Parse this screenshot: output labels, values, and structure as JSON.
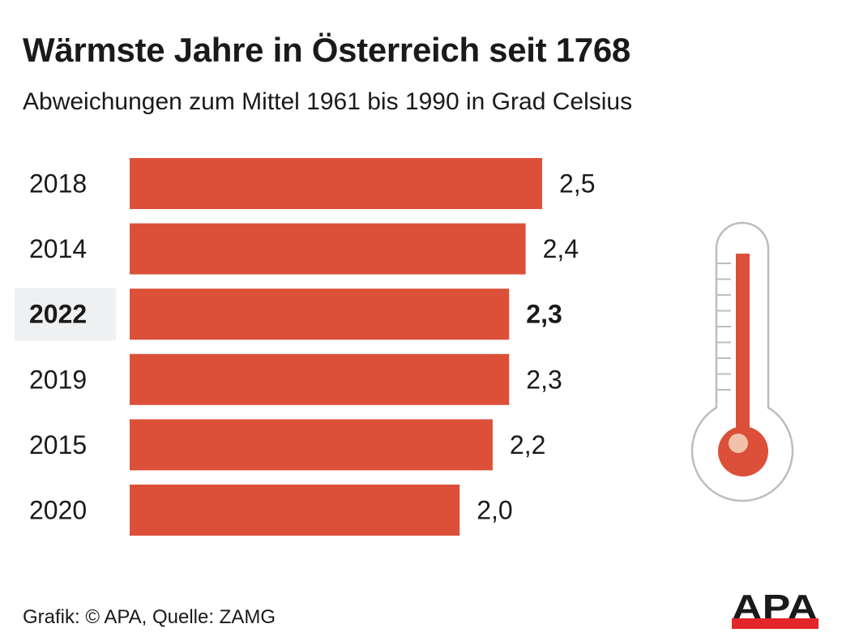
{
  "chart_data": {
    "type": "bar",
    "orientation": "horizontal",
    "title": "Wärmste Jahre in Österreich seit 1768",
    "subtitle": "Abweichungen zum Mittel 1961 bis 1990 in Grad Celsius",
    "categories": [
      "2018",
      "2014",
      "2022",
      "2019",
      "2015",
      "2020"
    ],
    "values": [
      2.5,
      2.4,
      2.3,
      2.3,
      2.2,
      2.0
    ],
    "value_labels": [
      "2,5",
      "2,4",
      "2,3",
      "2,3",
      "2,2",
      "2,0"
    ],
    "highlighted_category": "2022",
    "xlim": [
      0,
      2.5
    ],
    "grid": false,
    "bar_color": "#dc5039",
    "highlight_bg_color": "#eff0f2"
  },
  "footer": {
    "source": "Grafik: © APA, Quelle: ZAMG"
  },
  "logo": {
    "text": "APA",
    "text_color": "#1a1a1a",
    "bar_color": "#e4262a"
  },
  "icon": "thermometer-icon"
}
